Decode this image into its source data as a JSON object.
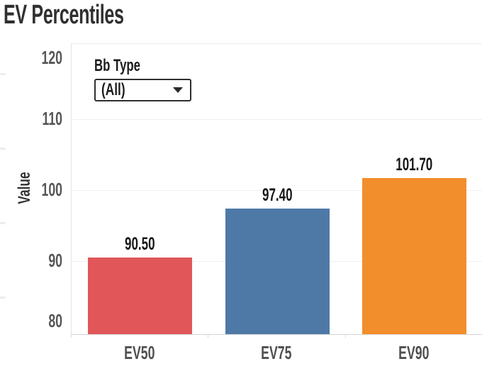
{
  "title": "EV Percentiles",
  "filter": {
    "label": "Bb Type",
    "value": "(All)",
    "caret_icon": "dropdown-caret"
  },
  "chart_data": {
    "type": "bar",
    "title": "EV Percentiles",
    "categories": [
      "EV50",
      "EV75",
      "EV90"
    ],
    "values": [
      90.5,
      97.4,
      101.7
    ],
    "bar_labels": [
      "90.50",
      "97.40",
      "101.70"
    ],
    "bar_colors": [
      "#e15759",
      "#4e79a7",
      "#f28e2b"
    ],
    "xlabel": "",
    "ylabel": "Value",
    "yticks": [
      120,
      110,
      100,
      90,
      80
    ],
    "ylim": [
      80,
      120
    ],
    "grid": "horizontal-light-gray",
    "legend": "none",
    "data_labels": "above-bars"
  },
  "palette": {
    "title_text": "#303030",
    "axis_text": "#565656",
    "category_text": "#4f4f4f",
    "value_label_text": "#161616",
    "gridline": "#f0f0f0",
    "axis_line": "#d4d4d4"
  }
}
